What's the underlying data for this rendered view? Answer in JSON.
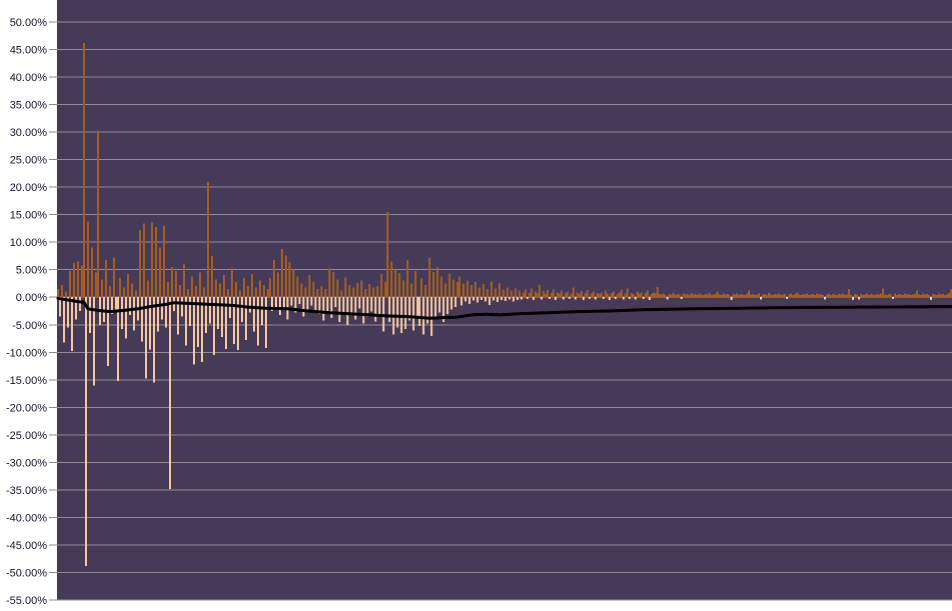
{
  "chart_data": {
    "type": "bar",
    "title": "",
    "xlabel": "",
    "ylabel": "",
    "legend": "none",
    "grid": true,
    "x_axis_labels_visible": false,
    "ylim": [
      -55,
      50
    ],
    "y_tick_step": 5,
    "y_ticks": [
      {
        "value": 50,
        "label": "50.00%"
      },
      {
        "value": 45,
        "label": "45.00%"
      },
      {
        "value": 40,
        "label": "40.00%"
      },
      {
        "value": 35,
        "label": "35.00%"
      },
      {
        "value": 30,
        "label": "30.00%"
      },
      {
        "value": 25,
        "label": "25.00%"
      },
      {
        "value": 20,
        "label": "20.00%"
      },
      {
        "value": 15,
        "label": "15.00%"
      },
      {
        "value": 10,
        "label": "10.00%"
      },
      {
        "value": 5,
        "label": "5.00%"
      },
      {
        "value": 0,
        "label": "0.00%"
      },
      {
        "value": -5,
        "label": "-5.00%"
      },
      {
        "value": -10,
        "label": "-10.00%"
      },
      {
        "value": -15,
        "label": "-15.00%"
      },
      {
        "value": -20,
        "label": "-20.00%"
      },
      {
        "value": -25,
        "label": "-25.00%"
      },
      {
        "value": -30,
        "label": "-30.00%"
      },
      {
        "value": -35,
        "label": "-35.00%"
      },
      {
        "value": -40,
        "label": "-40.00%"
      },
      {
        "value": -45,
        "label": "-45.00%"
      },
      {
        "value": -50,
        "label": "-50.00%"
      },
      {
        "value": -55,
        "label": "-55.00%"
      }
    ],
    "colors": {
      "plot_background": "#453b58",
      "page_background": "#ffffff",
      "grid_line": "#918b9b",
      "bar_positive": "#a85c1e",
      "bar_negative": "#f6c89e",
      "line": "#000000",
      "tick_label": "#16162c"
    },
    "series": [
      {
        "name": "percent-change-bars",
        "type": "bar",
        "unit": "%",
        "values": [
          1.5,
          -3.5,
          2.2,
          -8.2,
          1.0,
          -5.5,
          4.8,
          -9.8,
          6.2,
          -4.0,
          6.5,
          -2.5,
          5.8,
          46.2,
          -48.8,
          13.8,
          -6.5,
          9.0,
          -16.0,
          4.5,
          30.3,
          -5.0,
          3.2,
          -4.5,
          6.8,
          -12.5,
          2.0,
          -3.0,
          7.2,
          -2.2,
          -15.2,
          3.5,
          -5.8,
          1.8,
          -7.5,
          4.2,
          -3.2,
          2.5,
          -6.0,
          1.2,
          -4.2,
          12.2,
          -8.0,
          13.4,
          -14.8,
          3.0,
          -9.5,
          13.6,
          -15.5,
          12.8,
          -6.2,
          9.0,
          -4.0,
          13.0,
          -5.5,
          2.8,
          -34.8,
          5.5,
          -2.5,
          4.8,
          -6.8,
          2.2,
          -3.5,
          6.0,
          -8.8,
          1.5,
          -5.2,
          3.8,
          -12.2,
          2.0,
          -9.0,
          4.5,
          -11.8,
          1.8,
          -6.5,
          20.9,
          -4.8,
          7.5,
          -10.5,
          3.2,
          -5.8,
          2.5,
          -7.2,
          4.0,
          -9.4,
          1.5,
          -3.8,
          5.2,
          -8.5,
          2.8,
          -9.6,
          1.2,
          -4.5,
          3.5,
          -7.8,
          2.0,
          -2.8,
          4.2,
          -6.2,
          1.8,
          -8.8,
          3.0,
          -5.0,
          2.2,
          -9.2,
          1.5,
          3.5,
          -2.5,
          6.8,
          -1.8,
          4.5,
          -3.2,
          8.8,
          -2.0,
          7.6,
          -4.0,
          6.4,
          -1.5,
          5.0,
          -2.8,
          3.8,
          -1.2,
          2.5,
          -3.5,
          1.8,
          -2.2,
          4.0,
          -1.5,
          2.8,
          -2.5,
          1.5,
          -3.0,
          2.0,
          -4.2,
          1.5,
          -2.5,
          5.2,
          -3.8,
          4.6,
          -1.8,
          3.2,
          -4.5,
          1.2,
          -2.8,
          3.6,
          -5.0,
          2.2,
          -3.2,
          1.8,
          -4.0,
          2.6,
          -2.0,
          3.0,
          -4.8,
          1.5,
          -3.5,
          2.4,
          -2.6,
          1.8,
          -4.4,
          2.0,
          -3.5,
          4.2,
          -6.2,
          2.8,
          15.5,
          -4.5,
          6.5,
          -6.8,
          5.0,
          -5.5,
          4.4,
          -6.5,
          3.0,
          -5.8,
          6.8,
          -4.2,
          2.5,
          -6.0,
          4.8,
          -3.8,
          -5.2,
          3.5,
          -6.8,
          2.2,
          -4.8,
          7.2,
          -7.0,
          4.6,
          -3.5,
          5.4,
          -2.8,
          3.8,
          -4.5,
          2.5,
          -3.0,
          4.2,
          -2.2,
          3.2,
          -1.8,
          2.8,
          3.8,
          -1.5,
          2.5,
          -0.8,
          3.0,
          -1.2,
          2.2,
          -0.6,
          2.8,
          -1.0,
          1.8,
          -0.5,
          2.4,
          -0.8,
          1.5,
          -1.4,
          2.9,
          -0.6,
          1.6,
          -0.9,
          2.6,
          -0.5,
          1.4,
          -0.7,
          1.8,
          -0.4,
          1.2,
          -0.8,
          1.6,
          -0.5,
          1.2,
          -0.4,
          0.9,
          1.4,
          -0.3,
          0.8,
          1.6,
          -0.5,
          1.0,
          0.7,
          2.2,
          -0.4,
          1.1,
          0.6,
          1.3,
          -0.3,
          0.8,
          1.5,
          -0.5,
          0.9,
          0.7,
          1.2,
          -0.4,
          0.8,
          1.0,
          -0.3,
          0.7,
          1.8,
          -0.4,
          0.9,
          0.6,
          1.1,
          -0.5,
          0.8,
          1.3,
          -0.3,
          0.7,
          1.0,
          -0.4,
          0.8,
          0.6,
          0.9,
          -0.3,
          1.2,
          0.7,
          -0.5,
          0.8,
          1.0,
          -0.3,
          0.6,
          0.9,
          1.4,
          -0.4,
          0.7,
          1.6,
          -0.3,
          0.8,
          0.6,
          -0.4,
          1.0,
          0.7,
          0.9,
          -0.3,
          0.8,
          1.2,
          -0.5,
          0.6,
          0.9,
          0.7,
          1.9,
          0.6,
          0.5,
          0.7,
          0.4,
          -0.4,
          0.6,
          0.5,
          0.8,
          0.4,
          0.6,
          0.5,
          -0.3,
          0.7,
          0.5,
          0.6,
          0.4,
          0.8,
          0.5,
          0.6,
          0.4,
          0.7,
          0.5,
          0.4,
          0.6,
          0.5,
          0.8,
          0.4,
          0.5,
          0.6,
          1.0,
          0.5,
          0.4,
          0.7,
          0.5,
          0.6,
          0.4,
          -0.5,
          0.6,
          0.5,
          0.7,
          0.4,
          0.6,
          0.5,
          0.4,
          0.7,
          1.2,
          0.5,
          0.6,
          0.4,
          0.5,
          0.7,
          -0.4,
          0.5,
          0.6,
          0.4,
          0.8,
          0.5,
          0.4,
          0.6,
          0.5,
          0.7,
          0.4,
          0.5,
          0.6,
          -0.3,
          0.5,
          0.7,
          0.4,
          0.6,
          0.9,
          0.5,
          0.4,
          0.6,
          0.5,
          0.7,
          0.4,
          0.5,
          0.6,
          0.4,
          0.7,
          0.5,
          0.6,
          0.4,
          -0.4,
          0.5,
          0.7,
          0.4,
          0.6,
          0.5,
          0.4,
          0.6,
          0.5,
          0.7,
          0.4,
          0.5,
          1.5,
          0.4,
          -0.5,
          0.6,
          0.5,
          -0.4,
          0.6,
          0.4,
          0.5,
          0.7,
          0.4,
          0.6,
          0.5,
          0.4,
          0.6,
          0.5,
          0.7,
          1.6,
          0.5,
          0.4,
          0.6,
          0.5,
          -0.3,
          0.7,
          0.4,
          0.6,
          0.5,
          0.4,
          0.7,
          0.5,
          0.6,
          0.4,
          0.5,
          0.6,
          1.2,
          0.5,
          0.4,
          0.7,
          0.5,
          0.6,
          0.4,
          -0.5,
          0.6,
          0.5,
          0.4,
          0.7,
          0.5,
          0.6,
          0.4,
          0.5,
          0.8,
          1.5
        ]
      },
      {
        "name": "running-average-line",
        "type": "line",
        "unit": "%",
        "points": [
          [
            0,
            -0.2
          ],
          [
            5,
            -0.5
          ],
          [
            10,
            -0.8
          ],
          [
            13,
            -0.9
          ],
          [
            15,
            -2.1
          ],
          [
            20,
            -2.4
          ],
          [
            26,
            -2.6
          ],
          [
            33,
            -2.4
          ],
          [
            40,
            -2.1
          ],
          [
            48,
            -1.6
          ],
          [
            54,
            -1.3
          ],
          [
            58,
            -1.0
          ],
          [
            64,
            -1.1
          ],
          [
            70,
            -1.2
          ],
          [
            76,
            -1.3
          ],
          [
            82,
            -1.4
          ],
          [
            88,
            -1.5
          ],
          [
            95,
            -1.8
          ],
          [
            104,
            -2.0
          ],
          [
            115,
            -2.1
          ],
          [
            125,
            -2.5
          ],
          [
            136,
            -2.8
          ],
          [
            146,
            -3.0
          ],
          [
            156,
            -3.2
          ],
          [
            166,
            -3.4
          ],
          [
            173,
            -3.5
          ],
          [
            179,
            -3.6
          ],
          [
            186,
            -3.8
          ],
          [
            193,
            -3.7
          ],
          [
            200,
            -3.6
          ],
          [
            207,
            -3.2
          ],
          [
            214,
            -3.1
          ],
          [
            221,
            -3.2
          ],
          [
            230,
            -3.0
          ],
          [
            245,
            -2.8
          ],
          [
            260,
            -2.6
          ],
          [
            275,
            -2.5
          ],
          [
            290,
            -2.3
          ],
          [
            305,
            -2.2
          ],
          [
            320,
            -2.1
          ],
          [
            340,
            -2.0
          ],
          [
            360,
            -1.9
          ],
          [
            380,
            -1.85
          ],
          [
            400,
            -1.8
          ],
          [
            425,
            -1.75
          ],
          [
            447,
            -1.7
          ]
        ]
      }
    ]
  }
}
